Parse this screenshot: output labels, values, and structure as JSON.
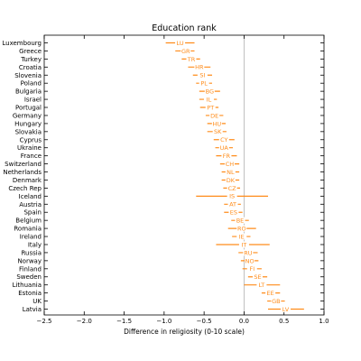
{
  "chart_data": {
    "type": "errorbar",
    "title": "Education rank",
    "xlabel": "Difference in religiosity (0-10 scale)",
    "ylabel": "",
    "xlim": [
      -2.5,
      1.0
    ],
    "xticks": [
      "−2.5",
      "−2.0",
      "−1.5",
      "−1.0",
      "−0.5",
      "0.0",
      "0.5",
      "1.0"
    ],
    "xtick_values": [
      -2.5,
      -2.0,
      -1.5,
      -1.0,
      -0.5,
      0.0,
      0.5,
      1.0
    ],
    "reference_line_x": 0.0,
    "grid": false,
    "marker_color": "#ff8c1a",
    "reference_color": "#b0b0b0",
    "rows": [
      {
        "country": "Luxembourg",
        "code": "LU",
        "estimate": -0.8,
        "low": -0.98,
        "high": -0.62
      },
      {
        "country": "Greece",
        "code": "GR",
        "estimate": -0.73,
        "low": -0.86,
        "high": -0.62
      },
      {
        "country": "Turkey",
        "code": "TR",
        "estimate": -0.66,
        "low": -0.78,
        "high": -0.55
      },
      {
        "country": "Croatia",
        "code": "HR",
        "estimate": -0.56,
        "low": -0.7,
        "high": -0.42
      },
      {
        "country": "Slovenia",
        "code": "SI",
        "estimate": -0.52,
        "low": -0.64,
        "high": -0.4
      },
      {
        "country": "Poland",
        "code": "PL",
        "estimate": -0.5,
        "low": -0.6,
        "high": -0.4
      },
      {
        "country": "Bulgaria",
        "code": "BG",
        "estimate": -0.43,
        "low": -0.56,
        "high": -0.3
      },
      {
        "country": "Israel",
        "code": "IL",
        "estimate": -0.44,
        "low": -0.56,
        "high": -0.34
      },
      {
        "country": "Portugal",
        "code": "PT",
        "estimate": -0.42,
        "low": -0.55,
        "high": -0.32
      },
      {
        "country": "Germany",
        "code": "DE",
        "estimate": -0.37,
        "low": -0.48,
        "high": -0.26
      },
      {
        "country": "Hungary",
        "code": "HU",
        "estimate": -0.34,
        "low": -0.46,
        "high": -0.23
      },
      {
        "country": "Slovakia",
        "code": "SK",
        "estimate": -0.33,
        "low": -0.46,
        "high": -0.22
      },
      {
        "country": "Cyprus",
        "code": "CY",
        "estimate": -0.25,
        "low": -0.38,
        "high": -0.12
      },
      {
        "country": "Ukraine",
        "code": "UA",
        "estimate": -0.25,
        "low": -0.36,
        "high": -0.14
      },
      {
        "country": "France",
        "code": "FR",
        "estimate": -0.22,
        "low": -0.35,
        "high": -0.09
      },
      {
        "country": "Switzerland",
        "code": "CH",
        "estimate": -0.18,
        "low": -0.3,
        "high": -0.06
      },
      {
        "country": "Netherlands",
        "code": "NL",
        "estimate": -0.17,
        "low": -0.28,
        "high": -0.06
      },
      {
        "country": "Denmark",
        "code": "DK",
        "estimate": -0.17,
        "low": -0.28,
        "high": -0.06
      },
      {
        "country": "Czech Rep",
        "code": "CZ",
        "estimate": -0.15,
        "low": -0.26,
        "high": -0.05
      },
      {
        "country": "Iceland",
        "code": "IS",
        "estimate": -0.15,
        "low": -0.6,
        "high": 0.3
      },
      {
        "country": "Austria",
        "code": "AT",
        "estimate": -0.14,
        "low": -0.25,
        "high": -0.04
      },
      {
        "country": "Spain",
        "code": "ES",
        "estimate": -0.13,
        "low": -0.25,
        "high": -0.02
      },
      {
        "country": "Belgium",
        "code": "BE",
        "estimate": -0.05,
        "low": -0.16,
        "high": 0.06
      },
      {
        "country": "Romania",
        "code": "RO",
        "estimate": -0.03,
        "low": -0.2,
        "high": 0.15
      },
      {
        "country": "Ireland",
        "code": "IE",
        "estimate": -0.03,
        "low": -0.15,
        "high": 0.08
      },
      {
        "country": "Italy",
        "code": "IT",
        "estimate": 0.0,
        "low": -0.35,
        "high": 0.32
      },
      {
        "country": "Russia",
        "code": "RU",
        "estimate": 0.05,
        "low": -0.07,
        "high": 0.17
      },
      {
        "country": "Norway",
        "code": "NO",
        "estimate": 0.07,
        "low": -0.04,
        "high": 0.18
      },
      {
        "country": "Finland",
        "code": "FI",
        "estimate": 0.1,
        "low": -0.02,
        "high": 0.22
      },
      {
        "country": "Sweden",
        "code": "SE",
        "estimate": 0.17,
        "low": 0.05,
        "high": 0.29
      },
      {
        "country": "Lithuania",
        "code": "LT",
        "estimate": 0.22,
        "low": 0.0,
        "high": 0.45
      },
      {
        "country": "Estonia",
        "code": "EE",
        "estimate": 0.33,
        "low": 0.22,
        "high": 0.45
      },
      {
        "country": "UK",
        "code": "GB",
        "estimate": 0.4,
        "low": 0.29,
        "high": 0.51
      },
      {
        "country": "Latvia",
        "code": "LV",
        "estimate": 0.52,
        "low": 0.3,
        "high": 0.75
      }
    ]
  }
}
